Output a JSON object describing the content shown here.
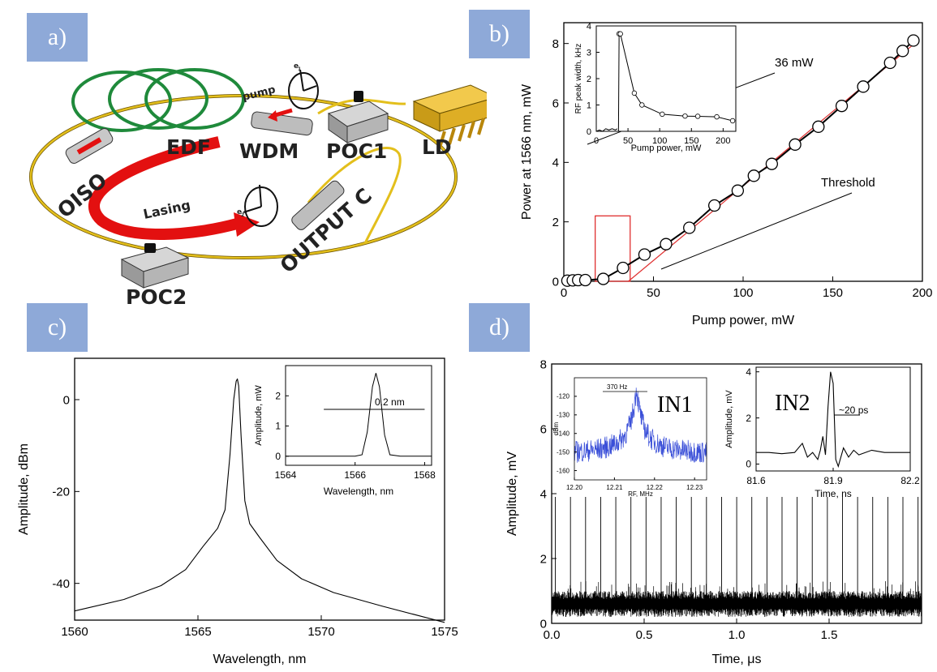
{
  "panel_tags": {
    "a": "a)",
    "b": "b)",
    "c": "c)",
    "d": "d)"
  },
  "schematic": {
    "labels": {
      "edf": "EDF",
      "wdm": "WDM",
      "poc1": "POC1",
      "ld": "LD",
      "oiso": "OISO",
      "lasing": "Lasing",
      "output": "OUTPUT C",
      "poc2": "POC2",
      "pump": "pump",
      "e1": "e",
      "e2": "e",
      "e1_sub": "1",
      "e2_sub": "2"
    },
    "colors": {
      "fiber": "#d9b200",
      "edf": "#1f8a3b",
      "arrow": "#e31010"
    }
  },
  "chart_data": [
    {
      "id": "b",
      "type": "scatter",
      "xlabel": "Pump power, mW",
      "ylabel": "Power at 1566 nm, mW",
      "xlim": [
        0,
        200
      ],
      "ylim": [
        0,
        8.7
      ],
      "xticks": [
        0,
        50,
        100,
        150,
        200
      ],
      "yticks": [
        0,
        2,
        4,
        6,
        8
      ],
      "series": [
        {
          "x": [
            2,
            5,
            8,
            12,
            22,
            33,
            45,
            57,
            70,
            84,
            97,
            106,
            116,
            129,
            142,
            155,
            167,
            182,
            189,
            195
          ],
          "y": [
            0.02,
            0.03,
            0.04,
            0.04,
            0.08,
            0.45,
            0.9,
            1.25,
            1.8,
            2.55,
            3.05,
            3.55,
            3.95,
            4.6,
            5.2,
            5.9,
            6.55,
            7.35,
            7.75,
            8.1
          ]
        }
      ],
      "fit_line": {
        "x": [
          36,
          198
        ],
        "y": [
          0,
          8.12
        ]
      },
      "annotations": {
        "a1": "36 mW",
        "a2": "Threshold"
      },
      "inset": {
        "xlabel": "Pump power, mW",
        "ylabel": "RF peak width, kHz",
        "xlim": [
          0,
          220
        ],
        "ylim": [
          0,
          4
        ],
        "xticks": [
          0,
          50,
          100,
          150,
          200
        ],
        "yticks": [
          0,
          1,
          2,
          3,
          4
        ],
        "x": [
          36,
          38,
          60,
          72,
          104,
          140,
          160,
          190,
          215
        ],
        "y": [
          3.7,
          3.7,
          1.45,
          1.0,
          0.65,
          0.58,
          0.57,
          0.55,
          0.4
        ],
        "below_x": [
          0,
          5,
          10,
          15,
          20,
          25,
          30,
          33
        ],
        "below_y": [
          0,
          0.05,
          0,
          0.1,
          0.05,
          0.1,
          0.05,
          0.1
        ]
      }
    },
    {
      "id": "c",
      "type": "line",
      "xlabel": "Wavelength, nm",
      "ylabel": "Amplitude, dBm",
      "xlim": [
        1560,
        1575
      ],
      "ylim": [
        -48,
        9
      ],
      "xticks": [
        1560,
        1565,
        1570,
        1575
      ],
      "yticks": [
        0,
        -20,
        -40
      ],
      "x": [
        1560,
        1562,
        1563.5,
        1564.5,
        1565.2,
        1565.8,
        1566.1,
        1566.3,
        1566.45,
        1566.55,
        1566.6,
        1566.65,
        1566.75,
        1566.9,
        1567.1,
        1567.5,
        1568.2,
        1569.2,
        1570.5,
        1572.5,
        1575
      ],
      "y": [
        -46,
        -43.5,
        -40.5,
        -37,
        -32,
        -28,
        -24,
        -12,
        0,
        4,
        4.5,
        3,
        -8,
        -22,
        -27,
        -30,
        -35,
        -39,
        -42,
        -45,
        -48.5
      ],
      "inset": {
        "xlabel": "Wavelength, nm",
        "ylabel": "Amplitude, mW",
        "xlim": [
          1564,
          1568.2
        ],
        "ylim": [
          -0.3,
          3.0
        ],
        "xticks": [
          1564,
          1566,
          1568
        ],
        "yticks": [
          0,
          1,
          2
        ],
        "x": [
          1564,
          1566.0,
          1566.2,
          1566.35,
          1566.5,
          1566.6,
          1566.7,
          1566.85,
          1567.0,
          1567.3,
          1568.2
        ],
        "y": [
          0,
          0,
          0.05,
          0.8,
          2.3,
          2.75,
          2.3,
          0.7,
          0.05,
          0,
          0
        ],
        "annotation": "0.2 nm"
      }
    },
    {
      "id": "d",
      "type": "line",
      "xlabel": "Time, μs",
      "ylabel": "Amplitude, mV",
      "xlim": [
        0,
        2.0
      ],
      "ylim": [
        0,
        8
      ],
      "xticks": [
        0.0,
        0.5,
        1.0,
        1.5
      ],
      "yticks": [
        0,
        2,
        4,
        6,
        8
      ],
      "pulse_period_us": 0.0817,
      "pulse_height_mV": 3.9,
      "noise_band_mV": [
        0.2,
        1.0
      ],
      "inset1": {
        "title": "IN1",
        "xlabel": "RF, MHz",
        "ylabel": "dBm",
        "xlim": [
          12.2,
          12.233
        ],
        "ylim": [
          -165,
          -110
        ],
        "xticks": [
          "12.20",
          "12.21",
          "12.22",
          "12.23"
        ],
        "yticks": [
          -120,
          -130,
          -140,
          -150,
          -160
        ],
        "annotation": "370 Hz",
        "trace_color": "#3a4fd8"
      },
      "inset2": {
        "title": "IN2",
        "xlabel": "Time, ns",
        "ylabel": "Amplitude, mV",
        "xlim": [
          81.6,
          82.2
        ],
        "ylim": [
          -0.3,
          4.2
        ],
        "xticks": [
          81.6,
          81.9,
          82.2
        ],
        "yticks": [
          0,
          2,
          4
        ],
        "x": [
          81.6,
          81.65,
          81.7,
          81.75,
          81.78,
          81.8,
          81.82,
          81.84,
          81.85,
          81.86,
          81.87,
          81.88,
          81.89,
          81.9,
          81.91,
          81.92,
          81.94,
          81.96,
          81.98,
          82.0,
          82.05,
          82.1,
          82.2
        ],
        "y": [
          0.5,
          0.5,
          0.45,
          0.5,
          0.9,
          0.3,
          0.5,
          0.2,
          0.6,
          1.2,
          0.4,
          2.5,
          4.0,
          3.5,
          0.2,
          -0.1,
          0.7,
          0.3,
          0.6,
          0.4,
          0.6,
          0.5,
          0.5
        ],
        "annotation": "~20 ps"
      }
    }
  ]
}
